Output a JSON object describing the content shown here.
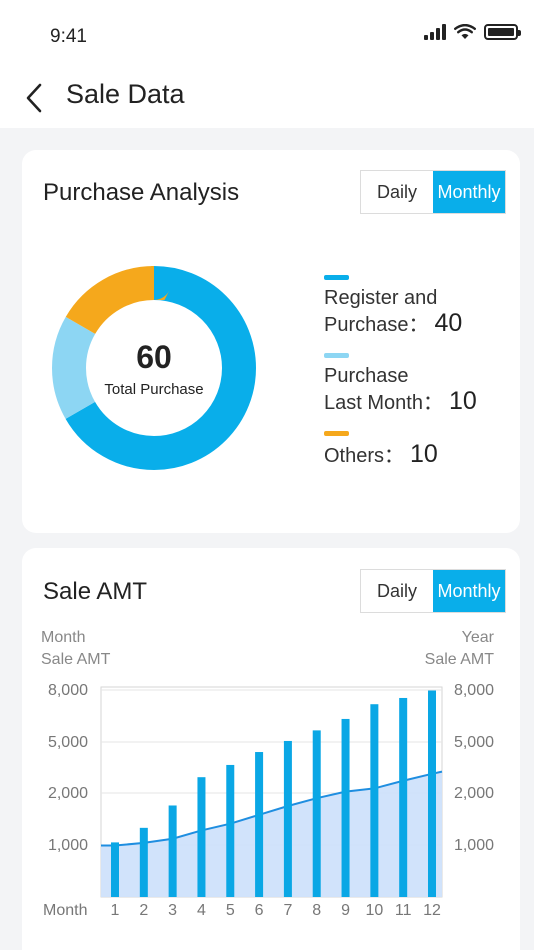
{
  "status": {
    "time": "9:41"
  },
  "nav": {
    "title": "Sale Data"
  },
  "purchase": {
    "title": "Purchase Analysis",
    "toggle": {
      "daily": "Daily",
      "monthly": "Monthly",
      "selected": "Monthly"
    },
    "total": "60",
    "total_label": "Total Purchase",
    "legend": [
      {
        "line1": "Register and",
        "line2": "Purchase：",
        "value": "40",
        "color": "#09aeea"
      },
      {
        "line1": "Purchase",
        "line2": "Last Month：",
        "value": "10",
        "color": "#8dd6f3"
      },
      {
        "line1": "",
        "line2": "Others：",
        "value": "10",
        "color": "#f5a81c"
      }
    ]
  },
  "sale": {
    "title": "Sale AMT",
    "toggle": {
      "daily": "Daily",
      "monthly": "Monthly",
      "selected": "Monthly"
    },
    "left_axis_caption": [
      "Month",
      "Sale AMT"
    ],
    "right_axis_caption": [
      "Year",
      "Sale AMT"
    ],
    "x_axis_label": "Month"
  },
  "chart_data": [
    {
      "type": "pie",
      "center_value": 60,
      "center_label": "Total Purchase",
      "slices": [
        {
          "label": "Register and Purchase",
          "value": 40,
          "color": "#09aeea"
        },
        {
          "label": "Purchase Last Month",
          "value": 10,
          "color": "#8dd6f3"
        },
        {
          "label": "Others",
          "value": 10,
          "color": "#f5a81c"
        }
      ]
    },
    {
      "type": "bar",
      "title": "Sale AMT",
      "xlabel": "Month",
      "categories": [
        "1",
        "2",
        "3",
        "4",
        "5",
        "6",
        "7",
        "8",
        "9",
        "10",
        "11",
        "12"
      ],
      "y_ticks": [
        "1,000",
        "2,000",
        "5,000",
        "8,000"
      ],
      "y_tick_values": [
        1000,
        2000,
        5000,
        8000
      ],
      "series": [
        {
          "name": "Month Sale AMT",
          "kind": "bar",
          "axis": "left",
          "color": "#0aa7e5",
          "values": [
            1050,
            1330,
            1760,
            2930,
            3650,
            4410,
            5060,
            5670,
            6330,
            7180,
            7540,
            7970
          ]
        },
        {
          "name": "Year Sale AMT",
          "kind": "area",
          "axis": "right",
          "color": "#1f8ee0",
          "values": [
            990,
            1040,
            1120,
            1280,
            1410,
            1580,
            1750,
            1900,
            2080,
            2270,
            2720,
            3130
          ]
        }
      ],
      "grid": true
    }
  ]
}
